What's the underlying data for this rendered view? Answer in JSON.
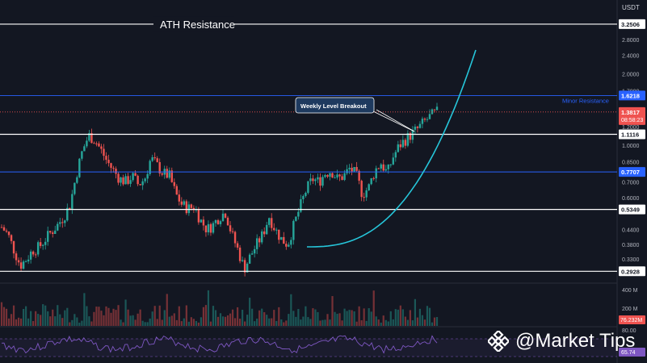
{
  "currency": "USDT",
  "watermark": {
    "text": "@Market Tips",
    "icon": "binance-diamond-icon"
  },
  "chart_data": {
    "type": "candlestick",
    "scale": "log",
    "ylim": [
      0.27,
      3.6
    ],
    "y_ticks": [
      "2.8000",
      "2.4000",
      "2.0000",
      "1.7000",
      "1.2000",
      "1.0000",
      "0.8500",
      "0.7000",
      "0.6000",
      "0.4400",
      "0.3800",
      "0.3300"
    ],
    "y_tick_values": [
      2.8,
      2.4,
      2.0,
      1.7,
      1.2,
      1.0,
      0.85,
      0.7,
      0.6,
      0.44,
      0.38,
      0.33
    ],
    "levels": [
      {
        "value": 3.2506,
        "label": "3.2506",
        "color": "#ffffff",
        "annotation": "ATH Resistance",
        "tag_style": "white"
      },
      {
        "value": 1.6218,
        "label": "1.6218",
        "color": "#2962ff",
        "annotation": "Minor Resistance",
        "tag_style": "blue"
      },
      {
        "value": 1.1116,
        "label": "1.1116",
        "color": "#ffffff",
        "annotation": "",
        "tag_style": "white"
      },
      {
        "value": 0.7707,
        "label": "0.7707",
        "color": "#2962ff",
        "annotation": "",
        "tag_style": "blue"
      },
      {
        "value": 0.5349,
        "label": "0.5349",
        "color": "#ffffff",
        "annotation": "",
        "tag_style": "white"
      },
      {
        "value": 0.2928,
        "label": "0.2928",
        "color": "#ffffff",
        "annotation": "",
        "tag_style": "white"
      }
    ],
    "current_price": {
      "value": 1.3817,
      "label": "1.3817",
      "countdown": "08:58:23",
      "color": "#ef5350"
    },
    "callout": {
      "text": "Weekly Level Breakout"
    },
    "curve_color": "#26c6da",
    "close_path": [
      0.45,
      0.42,
      0.36,
      0.31,
      0.33,
      0.36,
      0.37,
      0.4,
      0.43,
      0.46,
      0.5,
      0.56,
      0.75,
      0.95,
      1.1,
      1.05,
      0.95,
      0.85,
      0.78,
      0.72,
      0.7,
      0.74,
      0.68,
      0.72,
      0.88,
      0.82,
      0.76,
      0.74,
      0.62,
      0.56,
      0.54,
      0.55,
      0.48,
      0.44,
      0.46,
      0.5,
      0.52,
      0.42,
      0.36,
      0.3,
      0.34,
      0.38,
      0.42,
      0.5,
      0.44,
      0.4,
      0.38,
      0.46,
      0.55,
      0.65,
      0.72,
      0.7,
      0.76,
      0.78,
      0.72,
      0.74,
      0.8,
      0.75,
      0.62,
      0.66,
      0.78,
      0.84,
      0.76,
      0.9,
      1.0,
      1.06,
      1.12,
      1.18,
      1.26,
      1.33,
      1.38
    ],
    "volume": {
      "label": "400 M",
      "label2": "200 M",
      "last": "76.232M",
      "last_color": "#ef5350"
    },
    "rsi": {
      "label": "80.00",
      "last": "65.74",
      "line_color": "#7e57c2",
      "band_color": "#7e57c2"
    }
  }
}
